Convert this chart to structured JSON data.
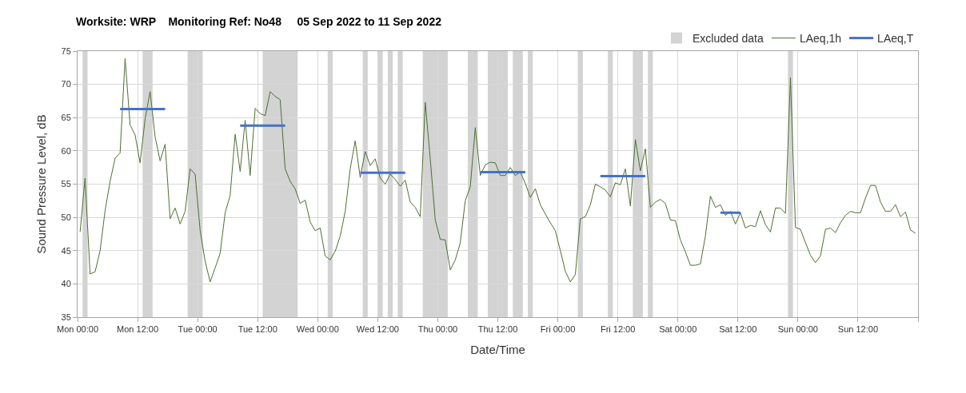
{
  "chart_data": {
    "type": "line",
    "title": "Worksite: WRP    Monitoring Ref: No48     05 Sep 2022 to 11 Sep 2022",
    "xlabel": "Date/Time",
    "ylabel": "Sound Pressure Level, dB",
    "xlim": [
      "2022-09-05T00:00",
      "2022-09-12T00:00"
    ],
    "ylim": [
      35,
      75
    ],
    "xticks": [
      {
        "value": "2022-09-05T00:00",
        "label": "Mon 00:00"
      },
      {
        "value": "2022-09-05T12:00",
        "label": "Mon 12:00"
      },
      {
        "value": "2022-09-06T00:00",
        "label": "Tue 00:00"
      },
      {
        "value": "2022-09-06T12:00",
        "label": "Tue 12:00"
      },
      {
        "value": "2022-09-07T00:00",
        "label": "Wed 00:00"
      },
      {
        "value": "2022-09-07T12:00",
        "label": "Wed 12:00"
      },
      {
        "value": "2022-09-08T00:00",
        "label": "Thu 00:00"
      },
      {
        "value": "2022-09-08T12:00",
        "label": "Thu 12:00"
      },
      {
        "value": "2022-09-09T00:00",
        "label": "Fri 00:00"
      },
      {
        "value": "2022-09-09T12:00",
        "label": "Fri 12:00"
      },
      {
        "value": "2022-09-10T00:00",
        "label": "Sat 00:00"
      },
      {
        "value": "2022-09-10T12:00",
        "label": "Sat 12:00"
      },
      {
        "value": "2022-09-11T00:00",
        "label": "Sun 00:00"
      },
      {
        "value": "2022-09-11T12:00",
        "label": "Sun 12:00"
      },
      {
        "value": "2022-09-12T00:00",
        "label": null
      }
    ],
    "yticks": [
      35,
      40,
      45,
      50,
      55,
      60,
      65,
      70,
      75
    ],
    "grid": true,
    "legend": "top right",
    "bands": [
      {
        "axis": "x",
        "from": "2022-09-05T01:00",
        "to": "2022-09-05T02:00",
        "label": "Excluded data",
        "color": "#d3d3d3"
      },
      {
        "axis": "x",
        "from": "2022-09-05T13:00",
        "to": "2022-09-05T15:00",
        "color": "#d3d3d3"
      },
      {
        "axis": "x",
        "from": "2022-09-05T22:00",
        "to": "2022-09-06T01:00",
        "color": "#d3d3d3"
      },
      {
        "axis": "x",
        "from": "2022-09-06T13:00",
        "to": "2022-09-06T20:00",
        "color": "#d3d3d3"
      },
      {
        "axis": "x",
        "from": "2022-09-07T02:00",
        "to": "2022-09-07T03:00",
        "color": "#d3d3d3"
      },
      {
        "axis": "x",
        "from": "2022-09-07T09:00",
        "to": "2022-09-07T10:00",
        "color": "#d3d3d3"
      },
      {
        "axis": "x",
        "from": "2022-09-07T12:00",
        "to": "2022-09-07T13:00",
        "color": "#d3d3d3"
      },
      {
        "axis": "x",
        "from": "2022-09-07T14:00",
        "to": "2022-09-07T15:00",
        "color": "#d3d3d3"
      },
      {
        "axis": "x",
        "from": "2022-09-07T16:00",
        "to": "2022-09-07T17:00",
        "color": "#d3d3d3"
      },
      {
        "axis": "x",
        "from": "2022-09-07T21:00",
        "to": "2022-09-08T02:00",
        "color": "#d3d3d3"
      },
      {
        "axis": "x",
        "from": "2022-09-08T06:00",
        "to": "2022-09-08T08:00",
        "color": "#d3d3d3"
      },
      {
        "axis": "x",
        "from": "2022-09-08T10:00",
        "to": "2022-09-08T14:00",
        "color": "#d3d3d3"
      },
      {
        "axis": "x",
        "from": "2022-09-08T15:00",
        "to": "2022-09-08T17:00",
        "color": "#d3d3d3"
      },
      {
        "axis": "x",
        "from": "2022-09-08T18:00",
        "to": "2022-09-08T19:00",
        "color": "#d3d3d3"
      },
      {
        "axis": "x",
        "from": "2022-09-09T04:00",
        "to": "2022-09-09T05:00",
        "color": "#d3d3d3"
      },
      {
        "axis": "x",
        "from": "2022-09-09T10:00",
        "to": "2022-09-09T11:00",
        "color": "#d3d3d3"
      },
      {
        "axis": "x",
        "from": "2022-09-09T15:00",
        "to": "2022-09-09T17:00",
        "color": "#d3d3d3"
      },
      {
        "axis": "x",
        "from": "2022-09-09T18:00",
        "to": "2022-09-09T19:00",
        "color": "#d3d3d3"
      },
      {
        "axis": "x",
        "from": "2022-09-10T22:00",
        "to": "2022-09-10T23:00",
        "color": "#d3d3d3"
      }
    ],
    "series": [
      {
        "name": "LAeq,1h",
        "color": "#4f6f33",
        "x": [
          "2022-09-05T00:30",
          "2022-09-05T01:30",
          "2022-09-05T02:30",
          "2022-09-05T03:30",
          "2022-09-05T04:30",
          "2022-09-05T05:30",
          "2022-09-05T06:30",
          "2022-09-05T07:30",
          "2022-09-05T08:30",
          "2022-09-05T09:30",
          "2022-09-05T10:30",
          "2022-09-05T11:30",
          "2022-09-05T12:30",
          "2022-09-05T13:30",
          "2022-09-05T14:30",
          "2022-09-05T15:30",
          "2022-09-05T16:30",
          "2022-09-05T17:30",
          "2022-09-05T18:30",
          "2022-09-05T19:30",
          "2022-09-05T20:30",
          "2022-09-05T21:30",
          "2022-09-05T22:30",
          "2022-09-05T23:30",
          "2022-09-06T00:30",
          "2022-09-06T01:30",
          "2022-09-06T02:30",
          "2022-09-06T03:30",
          "2022-09-06T04:30",
          "2022-09-06T05:30",
          "2022-09-06T06:30",
          "2022-09-06T07:30",
          "2022-09-06T08:30",
          "2022-09-06T09:30",
          "2022-09-06T10:30",
          "2022-09-06T11:30",
          "2022-09-06T12:30",
          "2022-09-06T13:30",
          "2022-09-06T14:30",
          "2022-09-06T15:30",
          "2022-09-06T16:30",
          "2022-09-06T17:30",
          "2022-09-06T18:30",
          "2022-09-06T19:30",
          "2022-09-06T20:30",
          "2022-09-06T21:30",
          "2022-09-06T22:30",
          "2022-09-06T23:30",
          "2022-09-07T00:30",
          "2022-09-07T01:30",
          "2022-09-07T02:30",
          "2022-09-07T03:30",
          "2022-09-07T04:30",
          "2022-09-07T05:30",
          "2022-09-07T06:30",
          "2022-09-07T07:30",
          "2022-09-07T08:30",
          "2022-09-07T09:30",
          "2022-09-07T10:30",
          "2022-09-07T11:30",
          "2022-09-07T12:30",
          "2022-09-07T13:30",
          "2022-09-07T14:30",
          "2022-09-07T15:30",
          "2022-09-07T16:30",
          "2022-09-07T17:30",
          "2022-09-07T18:30",
          "2022-09-07T19:30",
          "2022-09-07T20:30",
          "2022-09-07T21:30",
          "2022-09-07T22:30",
          "2022-09-07T23:30",
          "2022-09-08T00:30",
          "2022-09-08T01:30",
          "2022-09-08T02:30",
          "2022-09-08T03:30",
          "2022-09-08T04:30",
          "2022-09-08T05:30",
          "2022-09-08T06:30",
          "2022-09-08T07:30",
          "2022-09-08T08:30",
          "2022-09-08T09:30",
          "2022-09-08T10:30",
          "2022-09-08T11:30",
          "2022-09-08T12:30",
          "2022-09-08T13:30",
          "2022-09-08T14:30",
          "2022-09-08T15:30",
          "2022-09-08T16:30",
          "2022-09-08T17:30",
          "2022-09-08T18:30",
          "2022-09-08T19:30",
          "2022-09-08T20:30",
          "2022-09-08T21:30",
          "2022-09-08T22:30",
          "2022-09-08T23:30",
          "2022-09-09T00:30",
          "2022-09-09T01:30",
          "2022-09-09T02:30",
          "2022-09-09T03:30",
          "2022-09-09T04:30",
          "2022-09-09T05:30",
          "2022-09-09T06:30",
          "2022-09-09T07:30",
          "2022-09-09T08:30",
          "2022-09-09T09:30",
          "2022-09-09T10:30",
          "2022-09-09T11:30",
          "2022-09-09T12:30",
          "2022-09-09T13:30",
          "2022-09-09T14:30",
          "2022-09-09T15:30",
          "2022-09-09T16:30",
          "2022-09-09T17:30",
          "2022-09-09T18:30",
          "2022-09-09T19:30",
          "2022-09-09T20:30",
          "2022-09-09T21:30",
          "2022-09-09T22:30",
          "2022-09-09T23:30",
          "2022-09-10T00:30",
          "2022-09-10T01:30",
          "2022-09-10T02:30",
          "2022-09-10T03:30",
          "2022-09-10T04:30",
          "2022-09-10T05:30",
          "2022-09-10T06:30",
          "2022-09-10T07:30",
          "2022-09-10T08:30",
          "2022-09-10T09:30",
          "2022-09-10T10:30",
          "2022-09-10T11:30",
          "2022-09-10T12:30",
          "2022-09-10T13:30",
          "2022-09-10T14:30",
          "2022-09-10T15:30",
          "2022-09-10T16:30",
          "2022-09-10T17:30",
          "2022-09-10T18:30",
          "2022-09-10T19:30",
          "2022-09-10T20:30",
          "2022-09-10T21:30",
          "2022-09-10T22:30",
          "2022-09-10T23:30",
          "2022-09-11T00:30",
          "2022-09-11T01:30",
          "2022-09-11T02:30",
          "2022-09-11T03:30",
          "2022-09-11T04:30",
          "2022-09-11T05:30",
          "2022-09-11T06:30",
          "2022-09-11T07:30",
          "2022-09-11T08:30",
          "2022-09-11T09:30",
          "2022-09-11T10:30",
          "2022-09-11T11:30",
          "2022-09-11T12:30",
          "2022-09-11T13:30",
          "2022-09-11T14:30",
          "2022-09-11T15:30",
          "2022-09-11T16:30",
          "2022-09-11T17:30",
          "2022-09-11T18:30",
          "2022-09-11T19:30",
          "2022-09-11T20:30",
          "2022-09-11T21:30",
          "2022-09-11T22:30",
          "2022-09-11T23:30"
        ],
        "values": [
          47.8,
          55.9,
          41.5,
          41.8,
          45.0,
          51.0,
          55.4,
          58.9,
          59.7,
          73.9,
          63.9,
          62.4,
          58.2,
          64.8,
          68.9,
          62.1,
          58.5,
          61.0,
          49.8,
          51.4,
          49.0,
          50.9,
          57.3,
          56.5,
          48.0,
          43.4,
          40.3,
          42.4,
          44.6,
          50.7,
          53.3,
          62.5,
          56.9,
          64.6,
          56.3,
          66.4,
          65.6,
          65.3,
          68.9,
          68.2,
          67.7,
          57.3,
          55.4,
          54.3,
          52.1,
          52.6,
          49.3,
          48.0,
          48.4,
          44.2,
          43.6,
          44.9,
          47.2,
          50.9,
          57.3,
          61.5,
          56.0,
          59.9,
          57.8,
          58.8,
          55.9,
          55.0,
          56.5,
          55.7,
          54.7,
          55.6,
          52.3,
          51.5,
          50.1,
          67.3,
          58.8,
          49.6,
          46.7,
          46.6,
          42.1,
          43.6,
          46.2,
          52.5,
          54.6,
          63.5,
          56.3,
          57.9,
          58.3,
          58.2,
          56.3,
          56.3,
          57.5,
          56.3,
          56.8,
          55.1,
          53.0,
          54.3,
          51.9,
          50.5,
          49.2,
          48.0,
          45.0,
          41.9,
          40.3,
          41.4,
          49.8,
          50.1,
          51.9,
          55.0,
          54.6,
          54.1,
          53.1,
          55.2,
          54.9,
          57.3,
          51.7,
          61.7,
          57.0,
          60.3,
          51.5,
          52.3,
          52.7,
          52.1,
          49.6,
          49.5,
          46.6,
          44.8,
          42.8,
          42.8,
          43.0,
          47.2,
          53.2,
          51.5,
          51.9,
          50.3,
          50.9,
          49.0,
          50.7,
          48.4,
          48.8,
          48.6,
          51.0,
          48.9,
          47.8,
          51.4,
          51.4,
          50.6,
          71.0,
          48.5,
          48.2,
          46.2,
          44.3,
          43.2,
          44.2,
          48.2,
          48.4,
          47.7,
          49.2,
          50.3,
          50.9,
          50.7,
          50.7,
          52.9,
          54.8,
          54.8,
          52.3,
          50.9,
          50.9,
          51.9,
          50.1,
          50.8,
          48.1,
          47.6
        ]
      },
      {
        "name": "LAeq,T",
        "color": "#4472c4",
        "x": [
          "2022-09-05T08:30",
          "2022-09-05T17:30",
          "2022-09-05T20:00",
          "2022-09-06T08:30",
          "2022-09-06T17:30",
          "2022-09-06T21:00",
          "2022-09-07T08:30",
          "2022-09-07T17:30",
          "2022-09-07T22:00",
          "2022-09-08T08:30",
          "2022-09-08T17:30",
          "2022-09-08T23:00",
          "2022-09-09T08:30",
          "2022-09-09T17:30",
          "2022-09-10T00:00",
          "2022-09-10T08:30",
          "2022-09-10T12:30"
        ],
        "values": [
          66.3,
          66.3,
          null,
          63.8,
          63.8,
          null,
          56.7,
          56.7,
          null,
          56.8,
          56.8,
          null,
          56.2,
          56.2,
          null,
          50.7,
          50.7
        ]
      }
    ]
  }
}
